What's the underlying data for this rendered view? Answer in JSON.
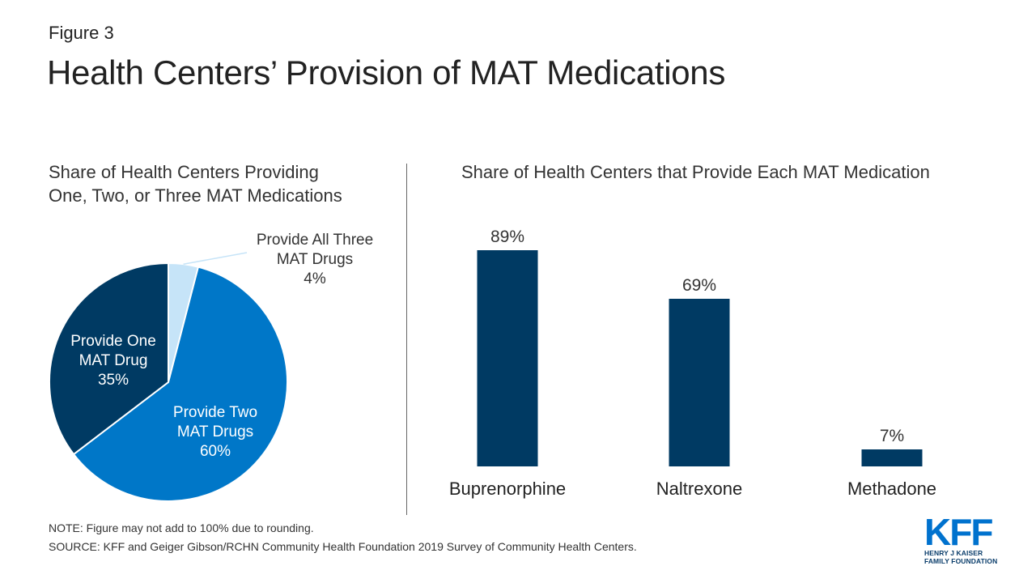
{
  "figure_label": "Figure 3",
  "title": "Health Centers’ Provision of MAT Medications",
  "note": "NOTE: Figure may not add to 100% due to rounding.",
  "source": "SOURCE: KFF and Geiger Gibson/RCHN Community Health Foundation 2019 Survey of Community Health Centers.",
  "logo": {
    "mark": "KFF",
    "line1": "HENRY J KAISER",
    "line2": "FAMILY FOUNDATION"
  },
  "chart_data": [
    {
      "type": "pie",
      "title_lines": [
        "Share of Health Centers Providing",
        "One, Two, or Three MAT Medications"
      ],
      "slices": [
        {
          "label_lines": [
            "Provide All Three",
            "MAT Drugs"
          ],
          "value": 4,
          "value_label": "4%",
          "color": "#c6e4f8",
          "label_color": "#333333"
        },
        {
          "label_lines": [
            "Provide Two",
            "MAT Drugs"
          ],
          "value": 60,
          "value_label": "60%",
          "color": "#0077c8",
          "label_color": "#ffffff"
        },
        {
          "label_lines": [
            "Provide One",
            "MAT Drug"
          ],
          "value": 35,
          "value_label": "35%",
          "color": "#003a63",
          "label_color": "#ffffff"
        }
      ],
      "start": "top, clockwise"
    },
    {
      "type": "bar",
      "title": "Share of Health Centers that Provide Each MAT Medication",
      "categories": [
        "Buprenorphine",
        "Naltrexone",
        "Methadone"
      ],
      "values": [
        89,
        69,
        7
      ],
      "value_labels": [
        "89%",
        "69%",
        "7%"
      ],
      "unit": "%",
      "ylim": [
        0,
        100
      ],
      "bar_color": "#003a63",
      "grid": false,
      "axis_line": false
    }
  ]
}
